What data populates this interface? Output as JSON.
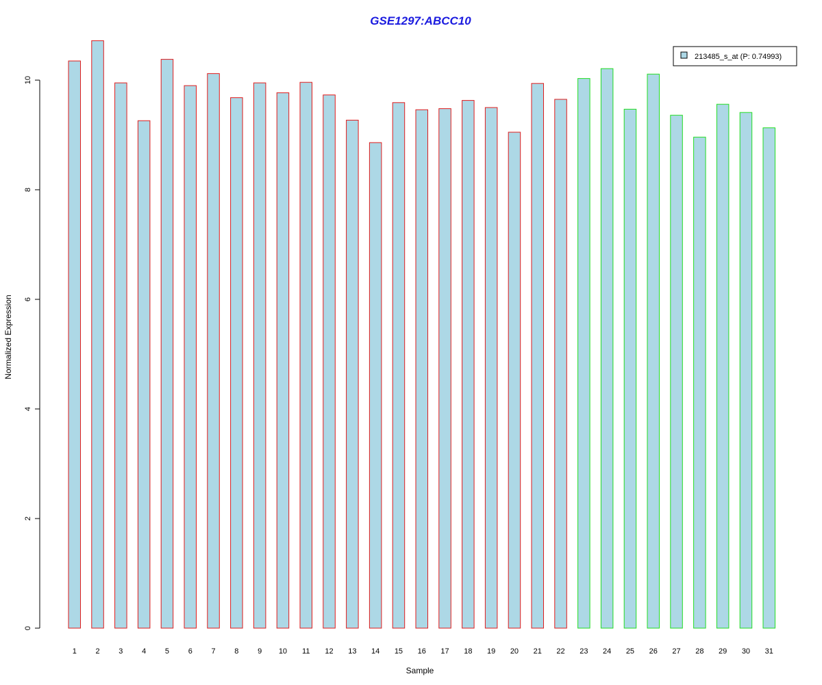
{
  "chart_data": {
    "type": "bar",
    "title": "GSE1297:ABCC10",
    "xlabel": "Sample",
    "ylabel": "Normalized Expression",
    "categories": [
      "1",
      "2",
      "3",
      "4",
      "5",
      "6",
      "7",
      "8",
      "9",
      "10",
      "11",
      "12",
      "13",
      "14",
      "15",
      "16",
      "17",
      "18",
      "19",
      "20",
      "21",
      "22",
      "23",
      "24",
      "25",
      "26",
      "27",
      "28",
      "29",
      "30",
      "31"
    ],
    "series": [
      {
        "name": "213485_s_at (P: 0.74993)",
        "values": [
          10.35,
          10.72,
          9.95,
          9.26,
          10.38,
          9.9,
          10.12,
          9.68,
          9.95,
          9.77,
          9.96,
          9.73,
          9.27,
          8.86,
          9.59,
          9.46,
          9.48,
          9.63,
          9.5,
          9.05,
          9.94,
          9.65,
          10.03,
          10.21,
          9.47,
          10.11,
          9.36,
          8.96,
          9.56,
          9.41,
          9.13
        ]
      }
    ],
    "groups": [
      {
        "from": 1,
        "to": 22,
        "border_color": "#e01b1b"
      },
      {
        "from": 23,
        "to": 31,
        "border_color": "#22dd22"
      }
    ],
    "bar_fill": "#add8e6",
    "title_color": "#1a1adf",
    "ylim": [
      0,
      10.8
    ],
    "yticks": [
      0,
      2,
      4,
      6,
      8,
      10
    ],
    "legend_position": "top-right"
  }
}
